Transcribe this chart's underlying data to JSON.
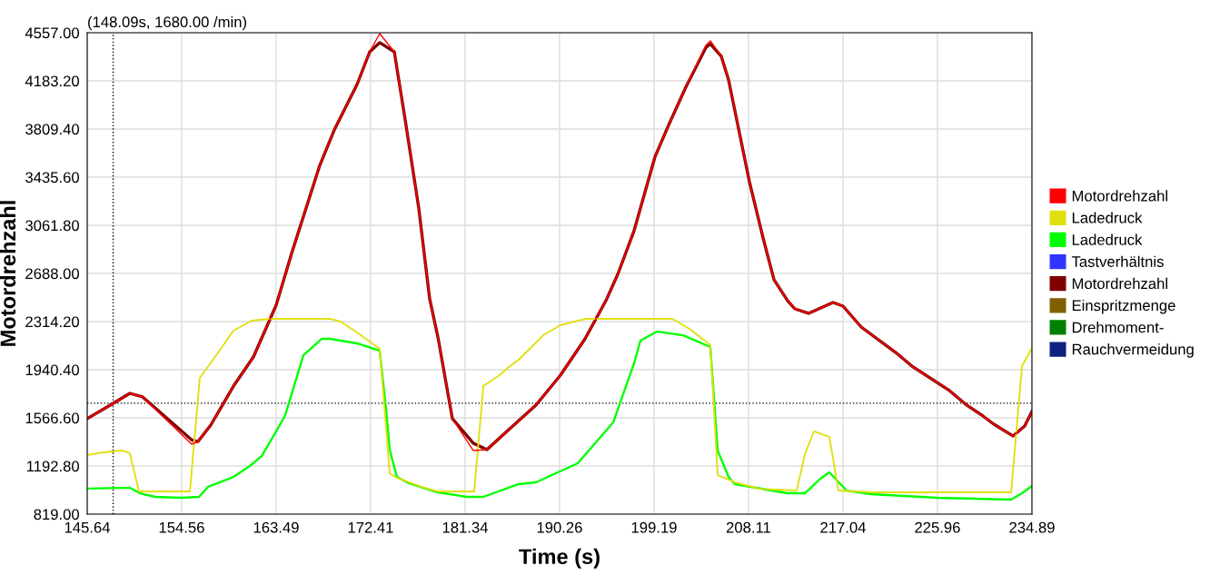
{
  "chart_data": {
    "type": "line",
    "xlabel": "Time (s)",
    "ylabel": "Motordrehzahl",
    "annotations": [
      "(148.09s, 1680.00 /min)"
    ],
    "xlim": [
      145.64,
      234.89
    ],
    "xticks": [
      145.64,
      154.56,
      163.49,
      172.41,
      181.34,
      190.26,
      199.19,
      208.11,
      217.04,
      225.96,
      234.89
    ],
    "ylim": [
      819,
      4557
    ],
    "yticks": [
      {
        "value": 819,
        "label": "819.00"
      },
      {
        "value": 1192.8,
        "label": "1192.80"
      },
      {
        "value": 1566.6,
        "label": "1566.60"
      },
      {
        "value": 1940.4,
        "label": "1940.40"
      },
      {
        "value": 2314.2,
        "label": "2314.20"
      },
      {
        "value": 2688,
        "label": "2688.00"
      },
      {
        "value": 3061.8,
        "label": "3061.80"
      },
      {
        "value": 3435.6,
        "label": "3435.60"
      },
      {
        "value": 3809.4,
        "label": "3809.40"
      },
      {
        "value": 4183.2,
        "label": "4183.20"
      },
      {
        "value": 4557,
        "label": "4557.00"
      }
    ],
    "grid": true,
    "legend": "right",
    "marker": "none",
    "line_style": "solid",
    "ref_lines": [
      {
        "axis": "x",
        "value": 148.09,
        "color": "#000000",
        "line_style": "dotted"
      },
      {
        "axis": "y",
        "value": 1680,
        "color": "#000000",
        "line_style": "dotted"
      }
    ],
    "series": [
      {
        "name": "Motordrehzahl",
        "color": "#ff0000",
        "x": [
          145.64,
          147.96,
          149.67,
          150.87,
          155.51,
          156.11,
          157.31,
          159.46,
          161.34,
          163.49,
          164.95,
          167.61,
          168.98,
          171.13,
          172.33,
          173.27,
          174.65,
          175.68,
          176.96,
          177.99,
          178.77,
          180.14,
          182.11,
          183.4,
          185.46,
          188.03,
          190.35,
          192.67,
          194.64,
          195.76,
          197.3,
          199.27,
          200.56,
          202.19,
          204.08,
          204.51,
          205.54,
          206.23,
          208.2,
          209.49,
          210.52,
          211.81,
          212.49,
          213.78,
          216.1,
          217.04,
          218.76,
          222.02,
          223.65,
          226.99,
          228.62,
          230.26,
          231.29,
          233.09,
          234.2,
          234.89
        ],
        "values": [
          1560,
          1672,
          1757,
          1729,
          1362,
          1383,
          1510,
          1813,
          2039,
          2441,
          2843,
          3527,
          3802,
          4155,
          4409,
          4550,
          4409,
          3880,
          3196,
          2491,
          2194,
          1560,
          1313,
          1320,
          1475,
          1665,
          1898,
          2180,
          2476,
          2681,
          3019,
          3591,
          3838,
          4134,
          4458,
          4494,
          4374,
          4190,
          3400,
          2963,
          2639,
          2476,
          2413,
          2378,
          2462,
          2434,
          2272,
          2074,
          1962,
          1785,
          1672,
          1581,
          1517,
          1426,
          1503,
          1616
        ]
      },
      {
        "name": "Ladedruck",
        "color": "#e0e010",
        "x": [
          145.64,
          147.18,
          148.9,
          149.67,
          150.53,
          155.34,
          156.28,
          158.26,
          159.46,
          161.17,
          162.8,
          168.64,
          169.58,
          171.13,
          173.27,
          174.22,
          174.9,
          177.22,
          178.77,
          182.2,
          183.06,
          184.6,
          185.46,
          186.4,
          188.72,
          190.35,
          192.67,
          200.91,
          202.54,
          204.51,
          205.2,
          206.83,
          209.14,
          212.66,
          213.44,
          214.29,
          215.75,
          216.61,
          220.04,
          232.92,
          233.95,
          234.89
        ],
        "values": [
          1277,
          1299,
          1313,
          1292,
          995,
          995,
          1877,
          2103,
          2244,
          2321,
          2335,
          2335,
          2314,
          2230,
          2103,
          1136,
          1101,
          1031,
          995,
          995,
          1813,
          1898,
          1962,
          2018,
          2208,
          2286,
          2335,
          2335,
          2258,
          2131,
          1122,
          1066,
          1016,
          1002,
          1284,
          1461,
          1419,
          1002,
          988,
          988,
          1969,
          2110
        ]
      },
      {
        "name": "Ladedruck",
        "color": "#00ff00",
        "x": [
          145.64,
          149.67,
          150.62,
          152.08,
          154.56,
          156.2,
          157.05,
          159.46,
          161.0,
          162.12,
          163.49,
          164.35,
          166.06,
          167.78,
          168.55,
          171.13,
          173.27,
          173.87,
          174.22,
          174.9,
          176.02,
          178.77,
          181.51,
          183.06,
          185.46,
          186.4,
          188.03,
          191.98,
          195.33,
          197.3,
          197.9,
          199.45,
          201.94,
          204.51,
          205.2,
          206.23,
          206.83,
          211.81,
          213.44,
          214.9,
          215.75,
          217.38,
          219.7,
          225.96,
          232.92,
          233.95,
          234.89
        ],
        "values": [
          1017,
          1024,
          981,
          953,
          946,
          953,
          1031,
          1108,
          1193,
          1270,
          1461,
          1588,
          2053,
          2180,
          2180,
          2145,
          2088,
          1637,
          1320,
          1108,
          1059,
          988,
          953,
          953,
          1024,
          1052,
          1066,
          1214,
          1531,
          1990,
          2166,
          2237,
          2208,
          2117,
          1313,
          1108,
          1052,
          981,
          981,
          1094,
          1143,
          1002,
          974,
          946,
          932,
          981,
          1038
        ]
      },
      {
        "name": "Tastverhältnis",
        "color": "#3333ff"
      },
      {
        "name": "Motordrehzahl",
        "color": "#800000",
        "x": [
          145.64,
          147.96,
          149.67,
          150.87,
          155.51,
          156.11,
          157.31,
          159.46,
          161.34,
          163.49,
          164.95,
          167.61,
          168.98,
          171.13,
          172.33,
          173.27,
          174.65,
          175.68,
          176.96,
          177.99,
          178.77,
          180.14,
          182.11,
          183.4,
          185.46,
          188.03,
          190.35,
          192.67,
          194.64,
          195.76,
          197.3,
          199.27,
          200.56,
          202.19,
          204.08,
          204.51,
          205.54,
          206.23,
          208.2,
          209.49,
          210.52,
          211.81,
          212.49,
          213.78,
          216.1,
          217.04,
          218.76,
          222.02,
          223.65,
          226.99,
          228.62,
          230.26,
          231.29,
          233.09,
          234.2,
          234.89
        ],
        "values": [
          1560,
          1672,
          1757,
          1729,
          1395,
          1383,
          1510,
          1813,
          2039,
          2441,
          2843,
          3527,
          3802,
          4155,
          4409,
          4480,
          4409,
          3880,
          3196,
          2491,
          2194,
          1560,
          1370,
          1320,
          1475,
          1665,
          1898,
          2180,
          2476,
          2681,
          3019,
          3591,
          3838,
          4134,
          4440,
          4470,
          4374,
          4190,
          3400,
          2963,
          2639,
          2476,
          2413,
          2378,
          2462,
          2434,
          2272,
          2074,
          1962,
          1785,
          1672,
          1581,
          1517,
          1426,
          1503,
          1616
        ]
      },
      {
        "name": "Einspritzmenge",
        "color": "#806000"
      },
      {
        "name": "Drehmoment-",
        "color": "#008000"
      },
      {
        "name": "Rauchvermeidung",
        "color": "#102080"
      }
    ]
  }
}
